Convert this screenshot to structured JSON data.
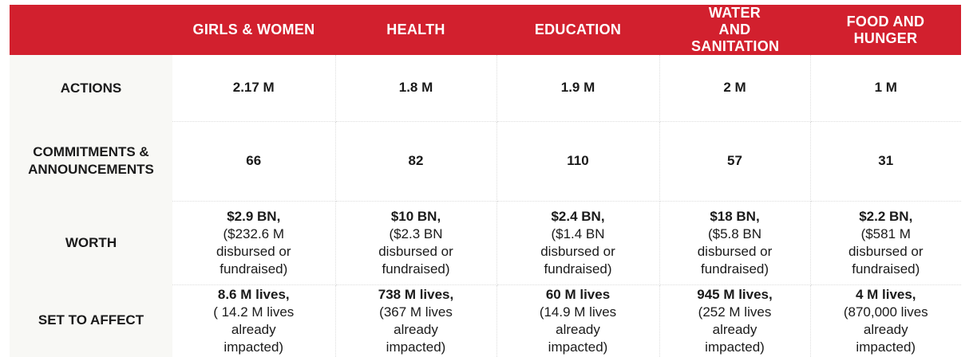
{
  "columns": [
    "GIRLS & WOMEN",
    "HEALTH",
    "EDUCATION",
    "WATER AND SANITATION",
    "FOOD AND HUNGER"
  ],
  "rows": [
    {
      "label": "ACTIONS",
      "cells": [
        {
          "main": "2.17 M"
        },
        {
          "main": "1.8 M"
        },
        {
          "main": "1.9 M"
        },
        {
          "main": "2 M"
        },
        {
          "main": "1 M"
        }
      ]
    },
    {
      "label": "COMMITMENTS & ANNOUNCEMENTS",
      "cells": [
        {
          "main": "66"
        },
        {
          "main": "82"
        },
        {
          "main": "110"
        },
        {
          "main": "57"
        },
        {
          "main": "31"
        }
      ]
    },
    {
      "label": "WORTH",
      "cells": [
        {
          "main": "$2.9 BN,",
          "sub": "($232.6 M disbursed or fundraised)"
        },
        {
          "main": "$10 BN,",
          "sub": "($2.3 BN disbursed or fundraised)"
        },
        {
          "main": "$2.4 BN,",
          "sub": "($1.4 BN disbursed or fundraised)"
        },
        {
          "main": "$18 BN,",
          "sub": "($5.8 BN disbursed or fundraised)"
        },
        {
          "main": "$2.2 BN,",
          "sub": "($581 M disbursed or fundraised)"
        }
      ]
    },
    {
      "label": "SET TO AFFECT",
      "cells": [
        {
          "main": "8.6 M lives,",
          "sub": "( 14.2 M lives already impacted)"
        },
        {
          "main": "738 M lives,",
          "sub": "(367 M lives already impacted)"
        },
        {
          "main": "60 M lives",
          "sub": "(14.9 M lives already impacted)"
        },
        {
          "main": "945 M lives,",
          "sub": "(252 M lives already impacted)"
        },
        {
          "main": "4 M lives,",
          "sub": "(870,000 lives already impacted)"
        }
      ]
    }
  ],
  "colors": {
    "header": "#d2202e",
    "label_bg": "#f8f8f5"
  }
}
